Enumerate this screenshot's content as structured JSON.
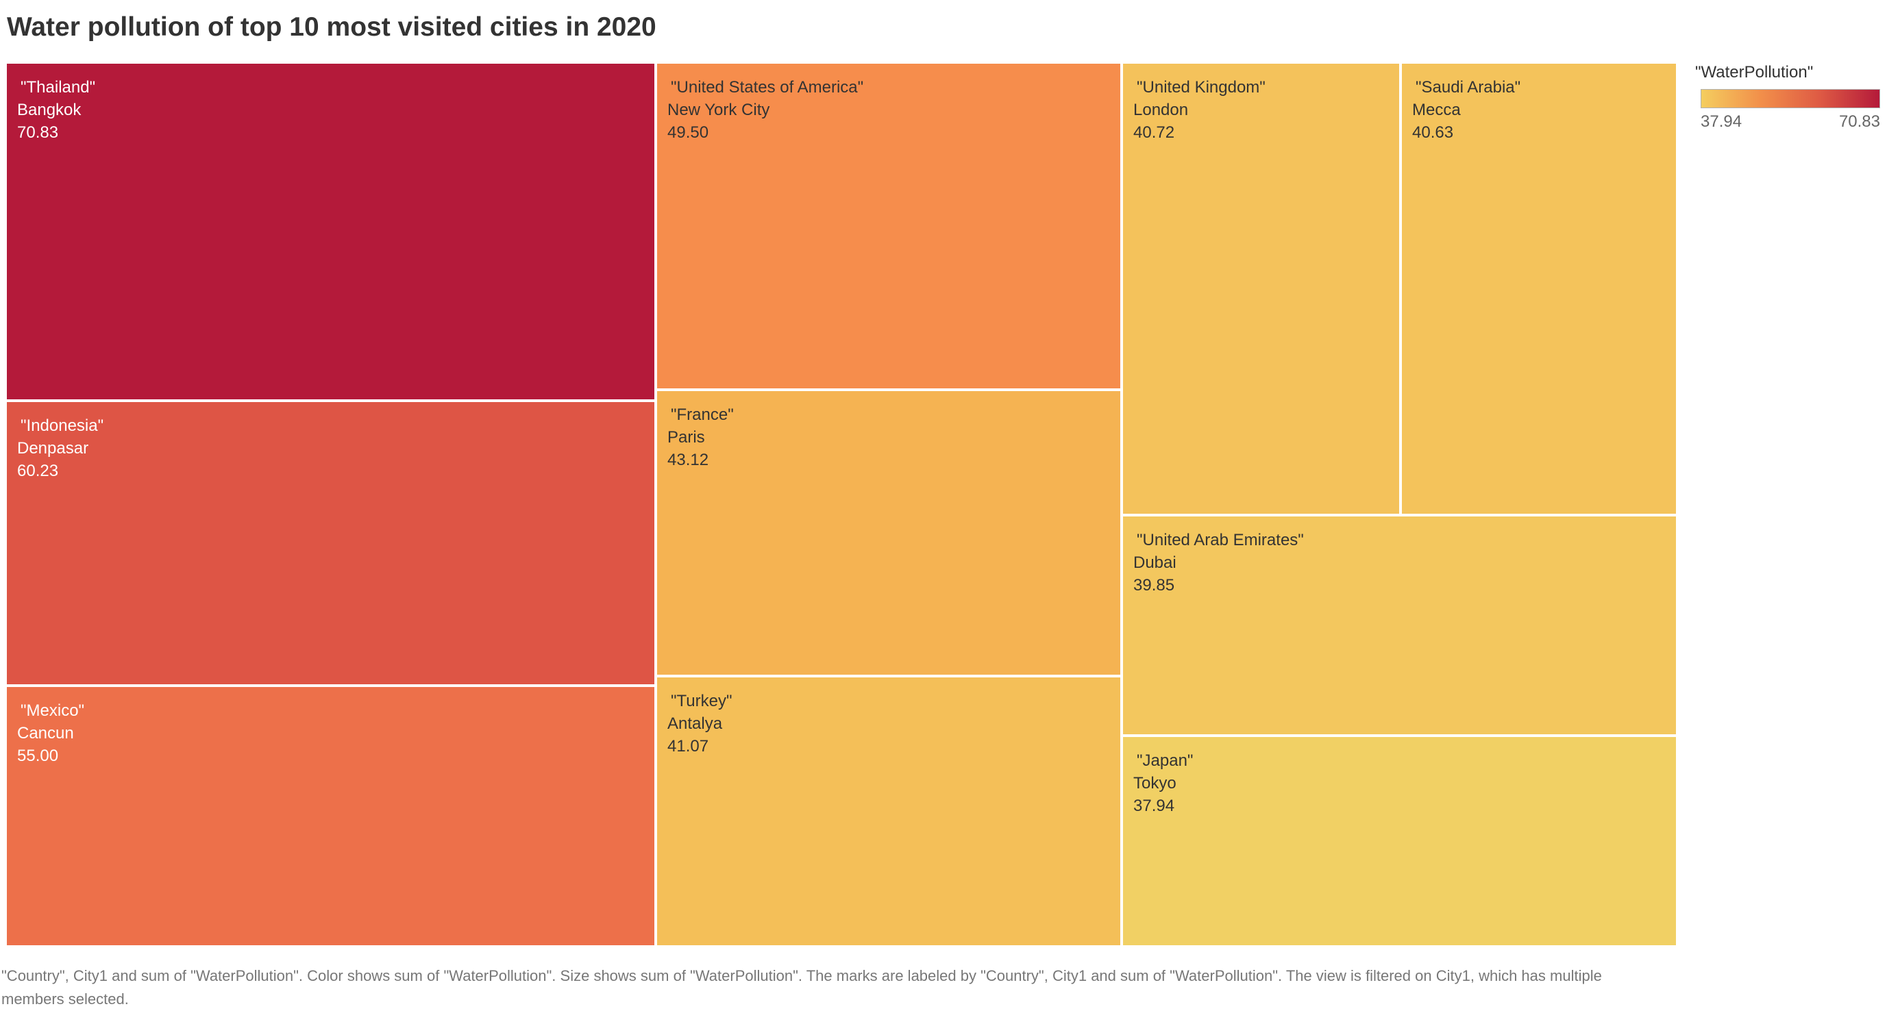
{
  "chart_data": {
    "type": "treemap",
    "title": "Water pollution of top 10 most visited cities in 2020",
    "measure": "\"WaterPollution\"",
    "items": [
      {
        "country": "\"Thailand\"",
        "city": "Bangkok",
        "value": 70.83,
        "value_label": "70.83",
        "color": "#b41a3a",
        "text_color": "#ffffff"
      },
      {
        "country": "\"Indonesia\"",
        "city": "Denpasar",
        "value": 60.23,
        "value_label": "60.23",
        "color": "#de5545",
        "text_color": "#ffffff"
      },
      {
        "country": "\"Mexico\"",
        "city": "Cancun",
        "value": 55.0,
        "value_label": "55.00",
        "color": "#ed704a",
        "text_color": "#ffffff"
      },
      {
        "country": "\"United States of America\"",
        "city": "New York City",
        "value": 49.5,
        "value_label": "49.50",
        "color": "#f68d4c",
        "text_color": "#333333"
      },
      {
        "country": "\"France\"",
        "city": "Paris",
        "value": 43.12,
        "value_label": "43.12",
        "color": "#f5b352",
        "text_color": "#333333"
      },
      {
        "country": "\"Turkey\"",
        "city": "Antalya",
        "value": 41.07,
        "value_label": "41.07",
        "color": "#f4bf58",
        "text_color": "#333333"
      },
      {
        "country": "\"United Kingdom\"",
        "city": "London",
        "value": 40.72,
        "value_label": "40.72",
        "color": "#f4c25b",
        "text_color": "#333333"
      },
      {
        "country": "\"Saudi Arabia\"",
        "city": "Mecca",
        "value": 40.63,
        "value_label": "40.63",
        "color": "#f4c35b",
        "text_color": "#333333"
      },
      {
        "country": "\"United Arab Emirates\"",
        "city": "Dubai",
        "value": 39.85,
        "value_label": "39.85",
        "color": "#f3c75e",
        "text_color": "#333333"
      },
      {
        "country": "\"Japan\"",
        "city": "Tokyo",
        "value": 37.94,
        "value_label": "37.94",
        "color": "#f1d064",
        "text_color": "#333333"
      }
    ],
    "legend": {
      "title": "\"WaterPollution\"",
      "min_label": "37.94",
      "max_label": "70.83",
      "placement": "top-right"
    },
    "caption": "\"Country\", City1 and sum of \"WaterPollution\".  Color shows sum of \"WaterPollution\".  Size shows sum of \"WaterPollution\".  The marks are labeled by \"Country\", City1 and sum of \"WaterPollution\". The view is filtered on City1, which has multiple members selected."
  }
}
